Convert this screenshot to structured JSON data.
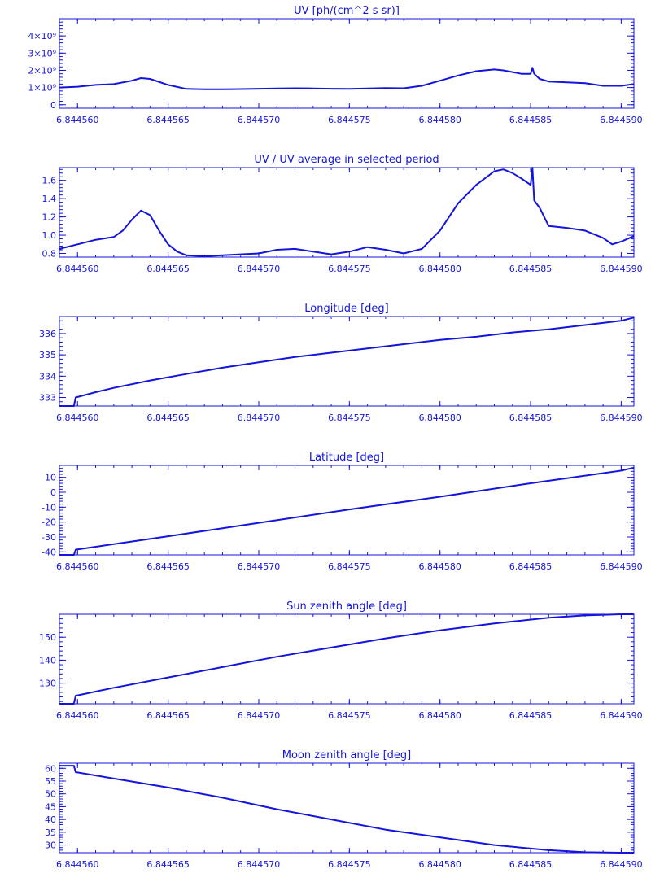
{
  "color": "#1414dc",
  "chart_data": [
    {
      "type": "line",
      "title": "UV [ph/(cm^2 s sr)]",
      "xlim": [
        6.844559,
        6.8445907
      ],
      "ylim": [
        -200000000,
        5000000000
      ],
      "x_ticks": [
        6.84456,
        6.844565,
        6.84457,
        6.844575,
        6.84458,
        6.844585,
        6.84459
      ],
      "x_tick_labels": [
        "6.844560",
        "6.844565",
        "6.844570",
        "6.844575",
        "6.844580",
        "6.844585",
        "6.844590"
      ],
      "y_ticks": [
        0,
        1000000000,
        2000000000,
        3000000000,
        4000000000
      ],
      "y_tick_labels": [
        "0",
        "1×10⁹",
        "2×10⁹",
        "3×10⁹",
        "4×10⁹"
      ],
      "series": [
        {
          "x": [
            6.844559,
            6.84456,
            6.844561,
            6.844562,
            6.844563,
            6.8445635,
            6.844564,
            6.844565,
            6.844566,
            6.844567,
            6.844568,
            6.844569,
            6.84457,
            6.844571,
            6.844572,
            6.844573,
            6.844574,
            6.844575,
            6.844576,
            6.844577,
            6.844578,
            6.844579,
            6.84458,
            6.844581,
            6.844582,
            6.844583,
            6.8445835,
            6.844584,
            6.8445845,
            6.844585,
            6.8445851,
            6.8445852,
            6.8445855,
            6.844586,
            6.844587,
            6.844588,
            6.844589,
            6.84459,
            6.8445907
          ],
          "y": [
            1000000000,
            1050000000,
            1150000000,
            1200000000,
            1400000000,
            1550000000,
            1500000000,
            1150000000,
            920000000,
            900000000,
            900000000,
            910000000,
            930000000,
            950000000,
            960000000,
            950000000,
            930000000,
            920000000,
            950000000,
            970000000,
            960000000,
            1100000000,
            1400000000,
            1700000000,
            1950000000,
            2050000000,
            2000000000,
            1900000000,
            1800000000,
            1800000000,
            2150000000,
            1800000000,
            1500000000,
            1350000000,
            1300000000,
            1250000000,
            1100000000,
            1100000000,
            1200000000
          ]
        }
      ]
    },
    {
      "type": "line",
      "title": "UV / UV average in selected period",
      "xlim": [
        6.844559,
        6.8445907
      ],
      "ylim": [
        0.76,
        1.74
      ],
      "x_ticks": [
        6.84456,
        6.844565,
        6.84457,
        6.844575,
        6.84458,
        6.844585,
        6.84459
      ],
      "x_tick_labels": [
        "6.844560",
        "6.844565",
        "6.844570",
        "6.844575",
        "6.844580",
        "6.844585",
        "6.844590"
      ],
      "y_ticks": [
        0.8,
        1.0,
        1.2,
        1.4,
        1.6
      ],
      "y_tick_labels": [
        "0.8",
        "1.0",
        "1.2",
        "1.4",
        "1.6"
      ],
      "series": [
        {
          "x": [
            6.844559,
            6.84456,
            6.844561,
            6.844562,
            6.8445625,
            6.844563,
            6.8445635,
            6.844564,
            6.8445645,
            6.844565,
            6.8445655,
            6.844566,
            6.844567,
            6.844568,
            6.844569,
            6.84457,
            6.844571,
            6.844572,
            6.844573,
            6.844574,
            6.844575,
            6.844576,
            6.844577,
            6.844578,
            6.844579,
            6.84458,
            6.844581,
            6.844582,
            6.844583,
            6.8445835,
            6.844584,
            6.8445845,
            6.844585,
            6.8445851,
            6.8445852,
            6.8445855,
            6.844586,
            6.844587,
            6.844588,
            6.844589,
            6.8445895,
            6.84459,
            6.8445907
          ],
          "y": [
            0.85,
            0.9,
            0.95,
            0.98,
            1.05,
            1.17,
            1.27,
            1.22,
            1.05,
            0.9,
            0.82,
            0.78,
            0.77,
            0.78,
            0.79,
            0.8,
            0.84,
            0.85,
            0.82,
            0.79,
            0.82,
            0.87,
            0.84,
            0.8,
            0.85,
            1.05,
            1.35,
            1.55,
            1.7,
            1.72,
            1.68,
            1.62,
            1.55,
            1.74,
            1.38,
            1.3,
            1.1,
            1.08,
            1.05,
            0.97,
            0.9,
            0.93,
            0.99
          ]
        }
      ]
    },
    {
      "type": "line",
      "title": "Longitude [deg]",
      "xlim": [
        6.844559,
        6.8445907
      ],
      "ylim": [
        332.6,
        336.8
      ],
      "x_ticks": [
        6.84456,
        6.844565,
        6.84457,
        6.844575,
        6.84458,
        6.844585,
        6.84459
      ],
      "x_tick_labels": [
        "6.844560",
        "6.844565",
        "6.844570",
        "6.844575",
        "6.844580",
        "6.844585",
        "6.844590"
      ],
      "y_ticks": [
        333,
        334,
        335,
        336
      ],
      "y_tick_labels": [
        "333",
        "334",
        "335",
        "336"
      ],
      "series": [
        {
          "x": [
            6.844559,
            6.8445598,
            6.8445599,
            6.844561,
            6.844562,
            6.844564,
            6.844566,
            6.844568,
            6.84457,
            6.844572,
            6.844574,
            6.844576,
            6.844578,
            6.84458,
            6.844582,
            6.844584,
            6.844586,
            6.844588,
            6.84459,
            6.8445907
          ],
          "y": [
            332.6,
            332.6,
            333.0,
            333.25,
            333.45,
            333.8,
            334.1,
            334.4,
            334.65,
            334.9,
            335.1,
            335.3,
            335.5,
            335.7,
            335.85,
            336.05,
            336.2,
            336.4,
            336.6,
            336.75
          ]
        }
      ]
    },
    {
      "type": "line",
      "title": "Latitude [deg]",
      "xlim": [
        6.844559,
        6.8445907
      ],
      "ylim": [
        -42,
        18
      ],
      "x_ticks": [
        6.84456,
        6.844565,
        6.84457,
        6.844575,
        6.84458,
        6.844585,
        6.84459
      ],
      "x_tick_labels": [
        "6.844560",
        "6.844565",
        "6.844570",
        "6.844575",
        "6.844580",
        "6.844585",
        "6.844590"
      ],
      "y_ticks": [
        -40,
        -30,
        -20,
        -10,
        0,
        10
      ],
      "y_tick_labels": [
        "-40",
        "-30",
        "-20",
        "-10",
        "0",
        "10"
      ],
      "series": [
        {
          "x": [
            6.844559,
            6.8445598,
            6.8445599,
            6.844565,
            6.84457,
            6.844575,
            6.84458,
            6.844585,
            6.84459,
            6.8445907
          ],
          "y": [
            -42,
            -42,
            -38.5,
            -29.5,
            -20.5,
            -11.5,
            -3,
            6,
            14.5,
            16.5
          ]
        }
      ]
    },
    {
      "type": "line",
      "title": "Sun zenith angle [deg]",
      "xlim": [
        6.844559,
        6.8445907
      ],
      "ylim": [
        121,
        160
      ],
      "x_ticks": [
        6.84456,
        6.844565,
        6.84457,
        6.844575,
        6.84458,
        6.844585,
        6.84459
      ],
      "x_tick_labels": [
        "6.844560",
        "6.844565",
        "6.844570",
        "6.844575",
        "6.844580",
        "6.844585",
        "6.844590"
      ],
      "y_ticks": [
        130,
        140,
        150
      ],
      "y_tick_labels": [
        "130",
        "140",
        "150"
      ],
      "series": [
        {
          "x": [
            6.844559,
            6.8445598,
            6.8445599,
            6.844562,
            6.844565,
            6.844568,
            6.844571,
            6.844574,
            6.844577,
            6.84458,
            6.844583,
            6.844586,
            6.844588,
            6.84459,
            6.8445907
          ],
          "y": [
            121,
            121,
            124.5,
            128,
            132.5,
            137,
            141.5,
            145.5,
            149.5,
            153,
            156,
            158.5,
            159.5,
            160,
            160
          ]
        }
      ]
    },
    {
      "type": "line",
      "title": "Moon zenith angle [deg]",
      "xlim": [
        6.844559,
        6.8445907
      ],
      "ylim": [
        27,
        62
      ],
      "x_ticks": [
        6.84456,
        6.844565,
        6.84457,
        6.844575,
        6.84458,
        6.844585,
        6.84459
      ],
      "x_tick_labels": [
        "6.844560",
        "6.844565",
        "6.844570",
        "6.844575",
        "6.844580",
        "6.844585",
        "6.844590"
      ],
      "y_ticks": [
        30,
        35,
        40,
        45,
        50,
        55,
        60
      ],
      "y_tick_labels": [
        "30",
        "35",
        "40",
        "45",
        "50",
        "55",
        "60"
      ],
      "series": [
        {
          "x": [
            6.844559,
            6.8445598,
            6.8445599,
            6.844562,
            6.844565,
            6.844568,
            6.844571,
            6.844574,
            6.844577,
            6.84458,
            6.844583,
            6.844586,
            6.844588,
            6.84459,
            6.8445907
          ],
          "y": [
            61,
            61,
            58.5,
            56,
            52.5,
            48.5,
            44,
            40,
            36,
            33,
            30,
            28,
            27.2,
            27,
            27
          ]
        }
      ]
    }
  ]
}
